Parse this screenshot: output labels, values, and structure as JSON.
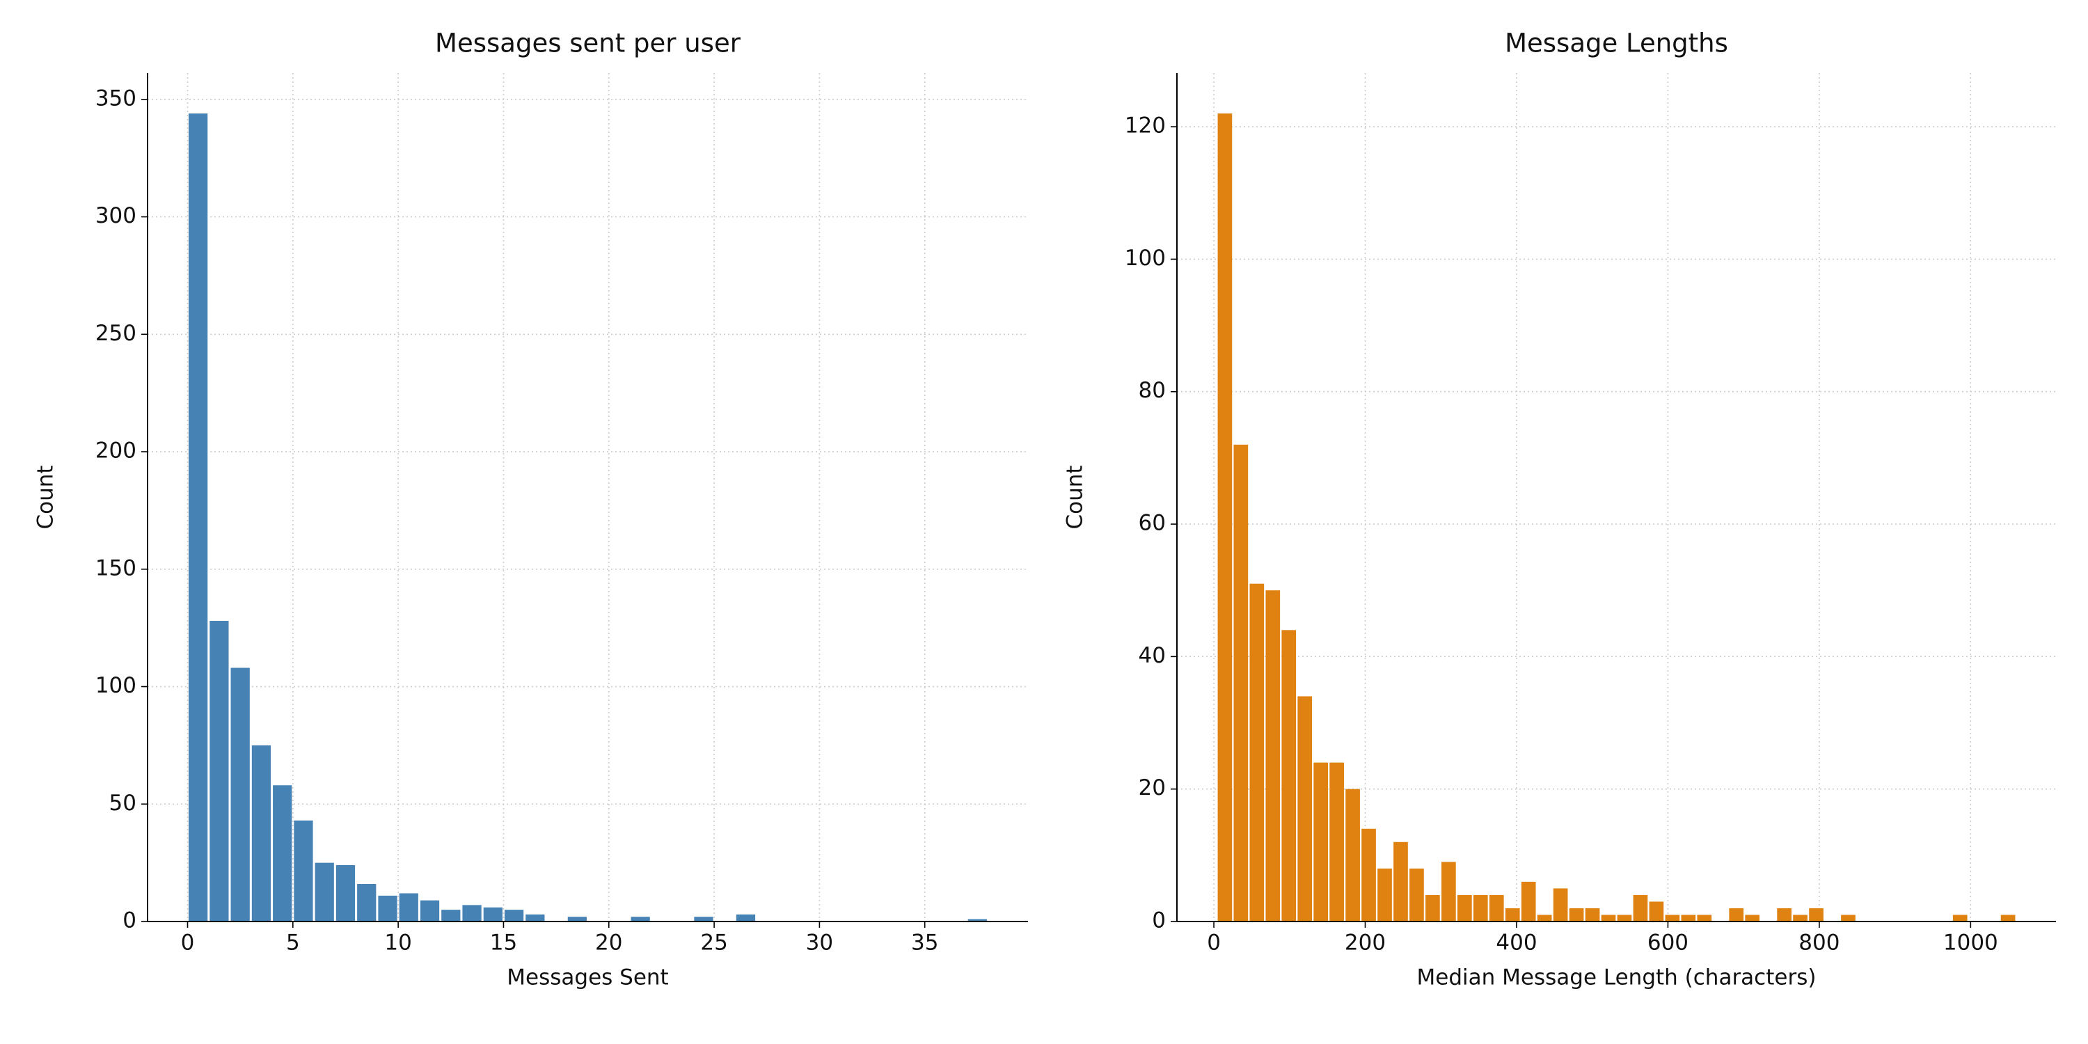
{
  "chart_data": [
    {
      "type": "histogram",
      "title": "Messages sent per user",
      "xlabel": "Messages Sent",
      "ylabel": "Count",
      "bins": [
        0,
        1,
        2,
        3,
        4,
        5,
        6,
        7,
        8,
        9,
        10,
        11,
        12,
        13,
        14,
        15,
        16,
        17,
        18,
        19,
        20,
        21,
        22,
        23,
        24,
        25,
        26,
        27,
        28,
        29,
        30,
        31,
        32,
        33,
        34,
        35,
        36,
        37,
        38
      ],
      "values": [
        344,
        128,
        108,
        75,
        58,
        43,
        25,
        24,
        16,
        11,
        12,
        9,
        5,
        7,
        6,
        5,
        3,
        0,
        2,
        0,
        0,
        2,
        0,
        0,
        2,
        0,
        3,
        0,
        0,
        0,
        0,
        0,
        0,
        0,
        0,
        0,
        0,
        1
      ],
      "color": "#4682b4",
      "xlim": [
        -1.9,
        39.9
      ],
      "ylim": [
        0,
        361.2
      ],
      "xticks": [
        0,
        5,
        10,
        15,
        20,
        25,
        30,
        35
      ],
      "yticks": [
        0,
        50,
        100,
        150,
        200,
        250,
        300,
        350
      ],
      "grid": true
    },
    {
      "type": "histogram",
      "title": "Message Lengths",
      "xlabel": "Median Message Length (characters)",
      "ylabel": "Count",
      "bins": [
        4,
        25.12,
        46.24,
        67.36,
        88.48,
        109.6,
        130.72,
        151.84,
        172.96,
        194.08,
        215.2,
        236.32,
        257.44,
        278.56,
        299.68,
        320.8,
        341.92,
        363.04,
        384.16,
        405.28,
        426.4,
        447.52,
        468.64,
        489.76,
        510.88,
        532,
        553.12,
        574.24,
        595.36,
        616.48,
        637.6,
        658.72,
        679.84,
        700.96,
        722.08,
        743.2,
        764.32,
        785.44,
        806.56,
        827.68,
        848.8,
        869.92,
        891.04,
        912.16,
        933.28,
        954.4,
        975.52,
        996.64,
        1017.76,
        1038.88,
        1060
      ],
      "values": [
        122,
        72,
        51,
        50,
        44,
        34,
        24,
        24,
        20,
        14,
        8,
        12,
        8,
        4,
        9,
        4,
        4,
        4,
        2,
        6,
        1,
        5,
        2,
        2,
        1,
        1,
        4,
        3,
        1,
        1,
        1,
        0,
        2,
        1,
        0,
        2,
        1,
        2,
        0,
        1,
        0,
        0,
        0,
        0,
        0,
        0,
        1,
        0,
        0,
        1
      ],
      "color": "#df8211",
      "xlim": [
        -48.8,
        1112.8
      ],
      "ylim": [
        0,
        128.1
      ],
      "xticks": [
        0,
        200,
        400,
        600,
        800,
        1000
      ],
      "yticks": [
        0,
        20,
        40,
        60,
        80,
        100,
        120
      ],
      "grid": true
    }
  ]
}
